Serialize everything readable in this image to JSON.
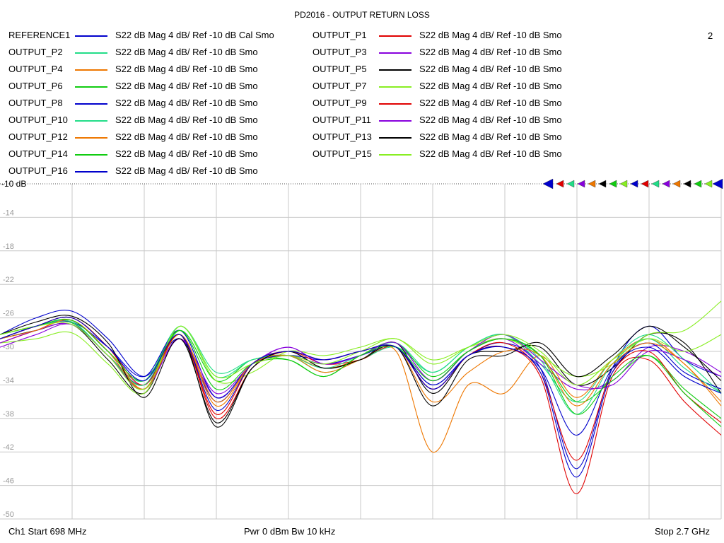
{
  "title": "PD2016 - OUTPUT RETURN LOSS",
  "window_number": "2",
  "ref_label": "-10 dB",
  "footer": {
    "start": "Ch1  Start  698 MHz",
    "power": "Pwr  0 dBm  Bw  10 kHz",
    "stop": "Stop  2.7 GHz"
  },
  "legend": [
    {
      "name": "REFERENCE1",
      "desc": "S22  dB Mag  4 dB/ Ref -10 dB  Cal Smo",
      "color": "#0000cc"
    },
    {
      "name": "OUTPUT_P1",
      "desc": "S22  dB Mag  4 dB/ Ref -10 dB  Smo",
      "color": "#e00000"
    },
    {
      "name": "OUTPUT_P2",
      "desc": "S22  dB Mag  4 dB/ Ref -10 dB  Smo",
      "color": "#22dd88"
    },
    {
      "name": "OUTPUT_P3",
      "desc": "S22  dB Mag  4 dB/ Ref -10 dB  Smo",
      "color": "#8800dd"
    },
    {
      "name": "OUTPUT_P4",
      "desc": "S22  dB Mag  4 dB/ Ref -10 dB  Smo",
      "color": "#ee7700"
    },
    {
      "name": "OUTPUT_P5",
      "desc": "S22  dB Mag  4 dB/ Ref -10 dB  Smo",
      "color": "#000000"
    },
    {
      "name": "OUTPUT_P6",
      "desc": "S22  dB Mag  4 dB/ Ref -10 dB  Smo",
      "color": "#11cc11"
    },
    {
      "name": "OUTPUT_P7",
      "desc": "S22  dB Mag  4 dB/ Ref -10 dB  Smo",
      "color": "#88ee22"
    },
    {
      "name": "OUTPUT_P8",
      "desc": "S22  dB Mag  4 dB/ Ref -10 dB  Smo",
      "color": "#0000cc"
    },
    {
      "name": "OUTPUT_P9",
      "desc": "S22  dB Mag  4 dB/ Ref -10 dB  Smo",
      "color": "#e00000"
    },
    {
      "name": "OUTPUT_P10",
      "desc": "S22  dB Mag  4 dB/ Ref -10 dB  Smo",
      "color": "#22dd88"
    },
    {
      "name": "OUTPUT_P11",
      "desc": "S22  dB Mag  4 dB/ Ref -10 dB  Smo",
      "color": "#8800dd"
    },
    {
      "name": "OUTPUT_P12",
      "desc": "S22  dB Mag  4 dB/ Ref -10 dB  Smo",
      "color": "#ee7700"
    },
    {
      "name": "OUTPUT_P13",
      "desc": "S22  dB Mag  4 dB/ Ref -10 dB  Smo",
      "color": "#000000"
    },
    {
      "name": "OUTPUT_P14",
      "desc": "S22  dB Mag  4 dB/ Ref -10 dB  Smo",
      "color": "#11cc11"
    },
    {
      "name": "OUTPUT_P15",
      "desc": "S22  dB Mag  4 dB/ Ref -10 dB  Smo",
      "color": "#88ee22"
    },
    {
      "name": "OUTPUT_P16",
      "desc": "S22  dB Mag  4 dB/ Ref -10 dB  Smo",
      "color": "#0000cc"
    }
  ],
  "chart_data": {
    "type": "line",
    "title": "PD2016 - OUTPUT RETURN LOSS",
    "xlabel": "",
    "ylabel": "",
    "x_range_mhz": [
      698,
      2700
    ],
    "ylim": [
      -50,
      -10
    ],
    "y_ticks": [
      -14,
      -18,
      -22,
      -26,
      -30,
      -34,
      -38,
      -42,
      -46,
      -50
    ],
    "x_divisions": 10,
    "y_divisions": 10,
    "grid": true,
    "x": [
      698,
      798,
      898,
      998,
      1098,
      1198,
      1298,
      1398,
      1498,
      1598,
      1698,
      1798,
      1898,
      1998,
      2098,
      2198,
      2298,
      2398,
      2498,
      2598,
      2700
    ],
    "series": [
      {
        "name": "REFERENCE1",
        "values": [
          -28.0,
          -26.0,
          -25.2,
          -28.5,
          -33.0,
          -28.5,
          -36.0,
          -31.5,
          -30.5,
          -31.0,
          -30.0,
          -29.5,
          -34.0,
          -30.5,
          -29.0,
          -32.0,
          -44.0,
          -32.0,
          -27.0,
          -31.0,
          -33.0
        ]
      },
      {
        "name": "OUTPUT_P1",
        "values": [
          -29.0,
          -27.5,
          -26.3,
          -30.0,
          -34.5,
          -28.0,
          -38.0,
          -32.0,
          -30.0,
          -31.5,
          -31.0,
          -29.5,
          -34.5,
          -30.5,
          -29.5,
          -33.0,
          -47.0,
          -33.0,
          -31.0,
          -36.0,
          -40.0
        ]
      },
      {
        "name": "OUTPUT_P2",
        "values": [
          -28.5,
          -27.0,
          -26.5,
          -30.5,
          -33.5,
          -27.0,
          -32.5,
          -31.0,
          -30.5,
          -32.5,
          -31.0,
          -29.5,
          -32.5,
          -29.5,
          -28.0,
          -31.5,
          -36.0,
          -31.0,
          -28.0,
          -31.0,
          -35.0
        ]
      },
      {
        "name": "OUTPUT_P3",
        "values": [
          -29.5,
          -28.0,
          -26.8,
          -30.5,
          -34.0,
          -28.5,
          -35.5,
          -31.5,
          -29.5,
          -31.5,
          -30.5,
          -29.0,
          -33.5,
          -30.0,
          -28.5,
          -31.5,
          -34.5,
          -33.5,
          -29.5,
          -30.0,
          -32.5
        ]
      },
      {
        "name": "OUTPUT_P4",
        "values": [
          -28.5,
          -27.0,
          -26.0,
          -29.5,
          -34.5,
          -28.0,
          -36.5,
          -31.5,
          -30.5,
          -32.0,
          -31.0,
          -30.0,
          -42.0,
          -34.0,
          -35.0,
          -30.5,
          -35.5,
          -31.0,
          -28.5,
          -31.5,
          -36.0
        ]
      },
      {
        "name": "OUTPUT_P5",
        "values": [
          -28.5,
          -27.5,
          -26.8,
          -31.0,
          -35.0,
          -28.0,
          -39.0,
          -32.0,
          -30.0,
          -32.0,
          -31.0,
          -29.0,
          -35.0,
          -30.5,
          -30.0,
          -29.5,
          -34.0,
          -32.0,
          -28.0,
          -29.0,
          -35.0
        ]
      },
      {
        "name": "OUTPUT_P6",
        "values": [
          -28.0,
          -27.0,
          -26.6,
          -30.5,
          -34.0,
          -27.5,
          -33.5,
          -31.0,
          -31.0,
          -33.0,
          -30.5,
          -29.0,
          -33.0,
          -30.0,
          -28.5,
          -30.5,
          -36.0,
          -33.5,
          -30.5,
          -34.5,
          -38.0
        ]
      },
      {
        "name": "OUTPUT_P7",
        "values": [
          -29.0,
          -28.5,
          -27.8,
          -31.5,
          -35.0,
          -27.0,
          -33.5,
          -32.5,
          -30.0,
          -30.5,
          -29.5,
          -28.5,
          -31.0,
          -29.5,
          -28.5,
          -30.5,
          -33.0,
          -31.5,
          -28.0,
          -27.5,
          -24.0
        ]
      },
      {
        "name": "OUTPUT_P8",
        "values": [
          -28.5,
          -27.0,
          -26.5,
          -29.5,
          -33.0,
          -27.5,
          -35.5,
          -31.5,
          -30.5,
          -31.5,
          -30.5,
          -29.5,
          -34.0,
          -30.5,
          -29.5,
          -32.0,
          -40.0,
          -32.0,
          -29.0,
          -32.5,
          -34.5
        ]
      },
      {
        "name": "OUTPUT_P9",
        "values": [
          -28.5,
          -27.0,
          -26.0,
          -29.5,
          -34.0,
          -28.0,
          -37.5,
          -31.5,
          -30.0,
          -31.0,
          -30.0,
          -29.5,
          -34.5,
          -30.5,
          -29.0,
          -32.5,
          -43.0,
          -32.5,
          -30.0,
          -35.0,
          -38.5
        ]
      },
      {
        "name": "OUTPUT_P10",
        "values": [
          -28.0,
          -27.0,
          -26.5,
          -30.5,
          -34.0,
          -27.0,
          -33.0,
          -31.0,
          -30.5,
          -32.0,
          -30.5,
          -29.0,
          -32.5,
          -29.5,
          -28.0,
          -31.0,
          -37.5,
          -31.5,
          -28.5,
          -32.0,
          -35.0
        ]
      },
      {
        "name": "OUTPUT_P11",
        "values": [
          -29.0,
          -27.5,
          -26.8,
          -30.5,
          -34.5,
          -28.5,
          -35.0,
          -31.5,
          -29.5,
          -31.5,
          -30.5,
          -29.0,
          -33.5,
          -30.0,
          -28.0,
          -31.0,
          -34.0,
          -34.0,
          -30.0,
          -31.0,
          -33.0
        ]
      },
      {
        "name": "OUTPUT_P12",
        "values": [
          -28.5,
          -27.5,
          -26.3,
          -30.0,
          -34.5,
          -28.0,
          -36.0,
          -31.5,
          -30.5,
          -32.5,
          -31.0,
          -29.5,
          -36.0,
          -32.5,
          -30.0,
          -30.5,
          -36.5,
          -31.5,
          -29.0,
          -31.5,
          -36.5
        ]
      },
      {
        "name": "OUTPUT_P13",
        "values": [
          -28.0,
          -26.5,
          -25.8,
          -29.0,
          -35.5,
          -28.5,
          -38.5,
          -32.0,
          -30.0,
          -32.0,
          -31.0,
          -29.5,
          -36.5,
          -31.0,
          -30.5,
          -29.0,
          -33.0,
          -30.5,
          -27.0,
          -29.5,
          -33.5
        ]
      },
      {
        "name": "OUTPUT_P14",
        "values": [
          -28.0,
          -27.0,
          -26.3,
          -30.0,
          -33.5,
          -27.5,
          -34.5,
          -31.5,
          -31.0,
          -33.0,
          -30.5,
          -29.5,
          -33.5,
          -30.0,
          -28.5,
          -30.5,
          -37.5,
          -33.0,
          -30.5,
          -35.0,
          -39.0
        ]
      },
      {
        "name": "OUTPUT_P15",
        "values": [
          -28.0,
          -27.0,
          -26.8,
          -30.5,
          -34.5,
          -27.0,
          -33.0,
          -31.5,
          -30.5,
          -31.5,
          -30.0,
          -28.5,
          -31.5,
          -29.5,
          -28.0,
          -30.0,
          -34.0,
          -31.0,
          -28.5,
          -30.0,
          -28.0
        ]
      },
      {
        "name": "OUTPUT_P16",
        "values": [
          -28.5,
          -27.0,
          -26.0,
          -29.5,
          -33.5,
          -28.0,
          -37.0,
          -31.5,
          -30.0,
          -31.0,
          -30.0,
          -29.5,
          -34.5,
          -30.5,
          -29.5,
          -32.5,
          -45.0,
          -32.5,
          -29.5,
          -33.0,
          -35.0
        ]
      }
    ]
  }
}
